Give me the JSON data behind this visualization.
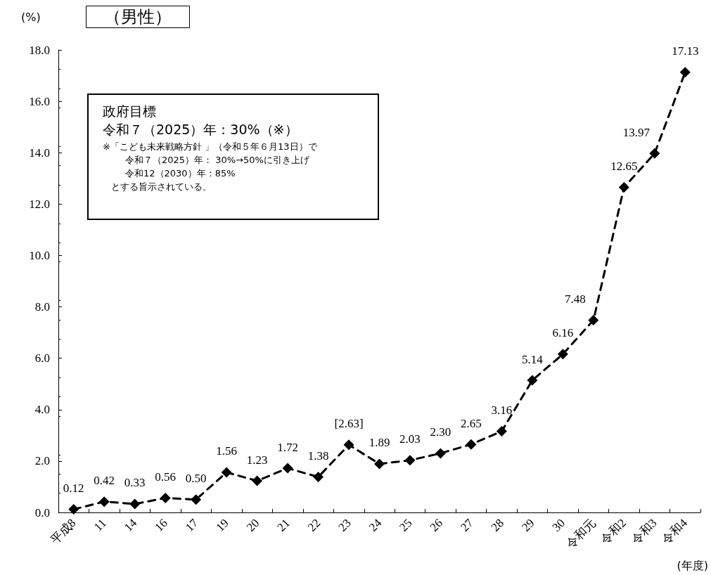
{
  "chart_data": {
    "type": "line",
    "title": "（男性）",
    "ylabel": "(%)",
    "xlabel": "(年度)",
    "categories": [
      "平成8",
      "11",
      "14",
      "16",
      "17",
      "19",
      "20",
      "21",
      "22",
      "23",
      "24",
      "25",
      "26",
      "27",
      "28",
      "29",
      "30",
      "令和元",
      "令和2",
      "令和3",
      "令和4"
    ],
    "series": [
      {
        "color": "#000000",
        "values": [
          0.12,
          0.42,
          0.33,
          0.56,
          0.5,
          1.56,
          1.23,
          1.72,
          1.38,
          2.63,
          1.89,
          2.03,
          2.3,
          2.65,
          3.16,
          5.14,
          6.16,
          7.48,
          12.65,
          13.97,
          17.13
        ],
        "value_labels": [
          "0.12",
          "0.42",
          "0.33",
          "0.56",
          "0.50",
          "1.56",
          "1.23",
          "1.72",
          "1.38",
          "[2.63]",
          "1.89",
          "2.03",
          "2.30",
          "2.65",
          "3.16",
          "5.14",
          "6.16",
          "7.48",
          "12.65",
          "13.97",
          "17.13"
        ]
      }
    ],
    "ylim": [
      0,
      18
    ],
    "yticks": [
      {
        "value": 0,
        "label": "0.0"
      },
      {
        "value": 2,
        "label": "2.0"
      },
      {
        "value": 4,
        "label": "4.0"
      },
      {
        "value": 6,
        "label": "6.0"
      },
      {
        "value": 8,
        "label": "8.0"
      },
      {
        "value": 10,
        "label": "10.0"
      },
      {
        "value": 12,
        "label": "12.0"
      },
      {
        "value": 14,
        "label": "14.0"
      },
      {
        "value": 16,
        "label": "16.0"
      },
      {
        "value": 18,
        "label": "18.0"
      }
    ],
    "grid": false,
    "marker": "diamond",
    "line_style": "dashed",
    "annotations": [
      "政府目標",
      "令和７（2025）年：30%（※）",
      "※「こども未来戦略方針 」（令和５年６月13日）で",
      "令和７（2025）年： 30%→50%に引き上げ",
      "令和12（2030）年：85%",
      "とする旨示されている。"
    ]
  }
}
